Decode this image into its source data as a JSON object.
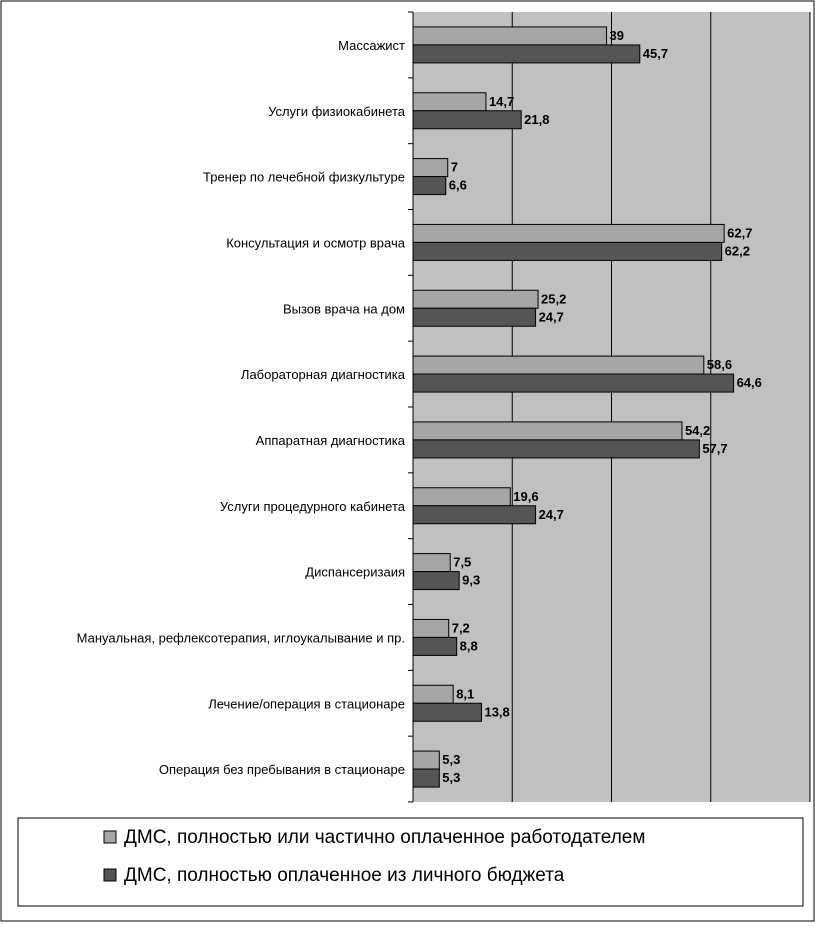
{
  "chart_data": {
    "type": "bar",
    "orientation": "horizontal",
    "categories": [
      "Массажист",
      "Услуги физиокабинета",
      "Тренер по лечебной физкультуре",
      "Консультация и осмотр врача",
      "Вызов врача на дом",
      "Лабораторная диагностика",
      "Аппаратная диагностика",
      "Услуги процедурного кабинета",
      "Диспансеризаия",
      "Мануальная, рефлексотерапия, иглоукалывание и пр.",
      "Лечение/операция в стационаре",
      "Операция без пребывания в стационаре"
    ],
    "series": [
      {
        "name": "ДМС, полностью или частично оплаченное работодателем",
        "color": "#a6a6a6",
        "values": [
          39,
          14.7,
          7,
          62.7,
          25.2,
          58.6,
          54.2,
          19.6,
          7.5,
          7.2,
          8.1,
          5.3
        ],
        "labels": [
          "39",
          "14,7",
          "7",
          "62,7",
          "25,2",
          "58,6",
          "54,2",
          "19,6",
          "7,5",
          "7,2",
          "8,1",
          "5,3"
        ]
      },
      {
        "name": "ДМС, полностью оплаченное из личного бюджета",
        "color": "#555555",
        "values": [
          45.7,
          21.8,
          6.6,
          62.2,
          24.7,
          64.6,
          57.7,
          24.7,
          9.3,
          8.8,
          13.8,
          5.3
        ],
        "labels": [
          "45,7",
          "21,8",
          "6,6",
          "62,2",
          "24,7",
          "64,6",
          "57,7",
          "24,7",
          "9,3",
          "8,8",
          "13,8",
          "5,3"
        ]
      }
    ],
    "xlim": [
      0,
      80
    ],
    "gridlines": [
      20,
      40,
      60,
      80
    ],
    "plot_background": "#c0c0c0",
    "legend_position": "bottom"
  }
}
